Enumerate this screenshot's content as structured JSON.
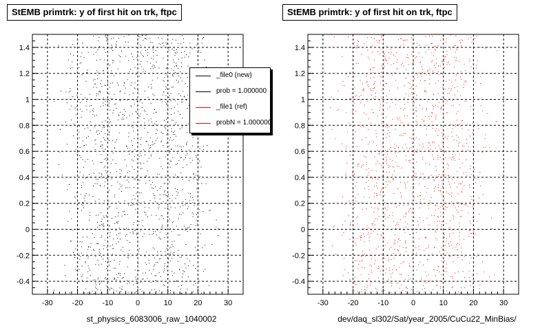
{
  "chart_data": [
    {
      "type": "scatter",
      "title": "StEMB primtrk: y of first hit on trk, ftpc",
      "xlabel": "st_physics_6083006_raw_1040002",
      "ylabel": "",
      "xlim": [
        -35,
        35
      ],
      "ylim": [
        -0.5,
        1.5
      ],
      "xticks": [
        -30,
        -20,
        -10,
        0,
        10,
        20,
        30
      ],
      "yticks": [
        -0.4,
        -0.2,
        0,
        0.2,
        0.4,
        0.6,
        0.8,
        1,
        1.2,
        1.4
      ],
      "grid": true,
      "point_color": "#000000",
      "legend": {
        "placement": "top-right",
        "entries": [
          {
            "label": "_file0 (new)",
            "color": "#000000"
          },
          {
            "label": "prob = 1.000000",
            "color": "#000000"
          },
          {
            "label": "_file1 (ref)",
            "color": "#ff0000"
          },
          {
            "label": "probN = 1.000000",
            "color": "#ff0000"
          }
        ]
      },
      "density_profile": {
        "description_x_bins": [
          -26,
          -22,
          -18,
          -14,
          -10,
          -6,
          -2,
          2,
          6,
          10,
          14,
          18,
          22,
          26
        ],
        "relative_density": [
          0.08,
          0.3,
          0.65,
          0.85,
          1.0,
          0.8,
          0.75,
          0.75,
          0.85,
          1.0,
          0.85,
          0.6,
          0.25,
          0.06
        ],
        "y_range": [
          -0.5,
          1.5
        ]
      }
    },
    {
      "type": "scatter",
      "title": "StEMB primtrk: y of first hit on trk, ftpc",
      "xlabel": "dev/daq_sl302/Sat/year_2005/CuCu22_MinBias/",
      "ylabel": "",
      "xlim": [
        -35,
        35
      ],
      "ylim": [
        -0.5,
        1.5
      ],
      "xticks": [
        -30,
        -20,
        -10,
        0,
        10,
        20,
        30
      ],
      "yticks": [
        -0.4,
        -0.2,
        0,
        0.2,
        0.4,
        0.6,
        0.8,
        1,
        1.2,
        1.4
      ],
      "grid": true,
      "point_color": "#ff0000",
      "density_profile": {
        "description_x_bins": [
          -26,
          -22,
          -18,
          -14,
          -10,
          -6,
          -2,
          2,
          6,
          10,
          14,
          18,
          22,
          26
        ],
        "relative_density": [
          0.08,
          0.3,
          0.65,
          0.85,
          1.0,
          0.8,
          0.75,
          0.75,
          0.85,
          1.0,
          0.85,
          0.6,
          0.25,
          0.06
        ],
        "y_range": [
          -0.5,
          1.5
        ]
      }
    }
  ]
}
